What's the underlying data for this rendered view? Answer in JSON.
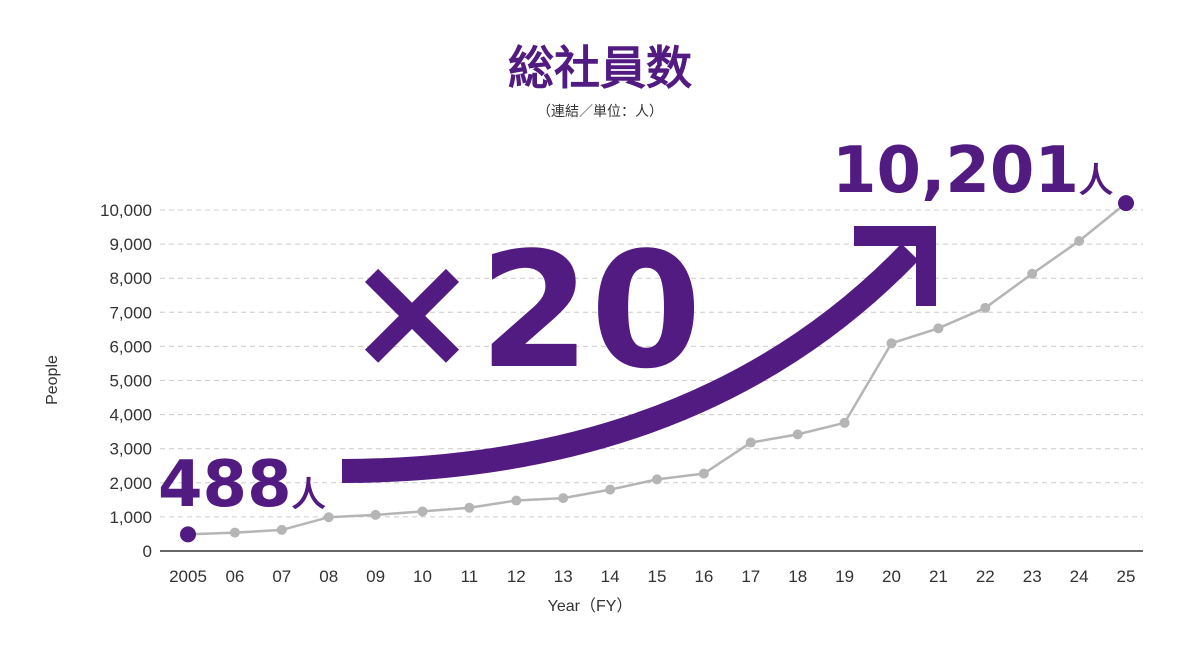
{
  "chart_data": {
    "type": "line",
    "title": "総社員数",
    "subtitle": "（連結／単位：人）",
    "xlabel": "Year（FY）",
    "ylabel": "People",
    "ylim": [
      0,
      10000
    ],
    "y_ticks": [
      "0",
      "1,000",
      "2,000",
      "3,000",
      "4,000",
      "5,000",
      "6,000",
      "7,000",
      "8,000",
      "9,000",
      "10,000"
    ],
    "categories": [
      "2005",
      "06",
      "07",
      "08",
      "09",
      "10",
      "11",
      "12",
      "13",
      "14",
      "15",
      "16",
      "17",
      "18",
      "19",
      "20",
      "21",
      "22",
      "23",
      "24",
      "25"
    ],
    "series": [
      {
        "values": [
          488,
          540,
          620,
          990,
          1060,
          1160,
          1270,
          1480,
          1550,
          1800,
          2100,
          2270,
          3180,
          3420,
          3760,
          6090,
          6530,
          7130,
          8130,
          9090,
          10201
        ]
      }
    ],
    "grid": true,
    "annotations": {
      "start_value": "488",
      "start_unit": "人",
      "end_value": "10,201",
      "end_unit": "人",
      "multiplier": "×20"
    },
    "colors": {
      "accent": "#521b82",
      "line": "#b5b5b5",
      "grid": "#cccccc"
    }
  }
}
